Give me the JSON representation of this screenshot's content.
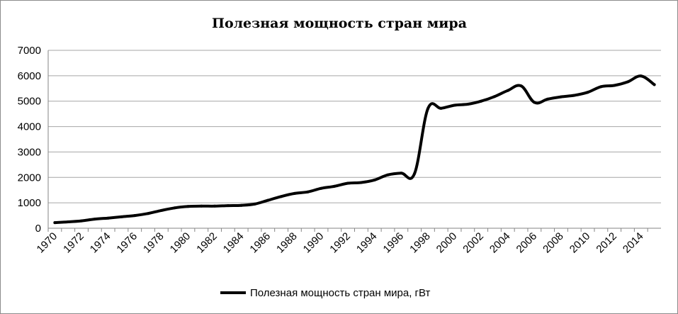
{
  "chart_data": {
    "type": "line",
    "title": "Полезная мощность стран мира",
    "xlabel": "",
    "ylabel": "",
    "ylim": [
      0,
      7000
    ],
    "yticks": [
      0,
      1000,
      2000,
      3000,
      4000,
      5000,
      6000,
      7000
    ],
    "xticks": [
      1970,
      1972,
      1974,
      1976,
      1978,
      1980,
      1982,
      1984,
      1986,
      1988,
      1990,
      1992,
      1994,
      1996,
      1998,
      2000,
      2002,
      2004,
      2006,
      2008,
      2010,
      2012,
      2014
    ],
    "grid": true,
    "legend": "bottom",
    "series": [
      {
        "name": "Полезная мощность стран мира, гВт",
        "color": "#000000",
        "x": [
          1970,
          1971,
          1972,
          1973,
          1974,
          1975,
          1976,
          1977,
          1978,
          1979,
          1980,
          1981,
          1982,
          1983,
          1984,
          1985,
          1986,
          1987,
          1988,
          1989,
          1990,
          1991,
          1992,
          1993,
          1994,
          1995,
          1996,
          1997,
          1998,
          1999,
          2000,
          2001,
          2002,
          2003,
          2004,
          2005,
          2006,
          2007,
          2008,
          2009,
          2010,
          2011,
          2012,
          2013,
          2014,
          2015
        ],
        "values": [
          220,
          250,
          290,
          360,
          400,
          450,
          500,
          580,
          700,
          800,
          860,
          870,
          870,
          890,
          900,
          950,
          1100,
          1250,
          1370,
          1430,
          1570,
          1650,
          1770,
          1800,
          1900,
          2100,
          2170,
          2150,
          4700,
          4720,
          4840,
          4880,
          5000,
          5180,
          5420,
          5600,
          4950,
          5080,
          5170,
          5230,
          5350,
          5570,
          5620,
          5760,
          5990,
          5650
        ]
      }
    ]
  }
}
